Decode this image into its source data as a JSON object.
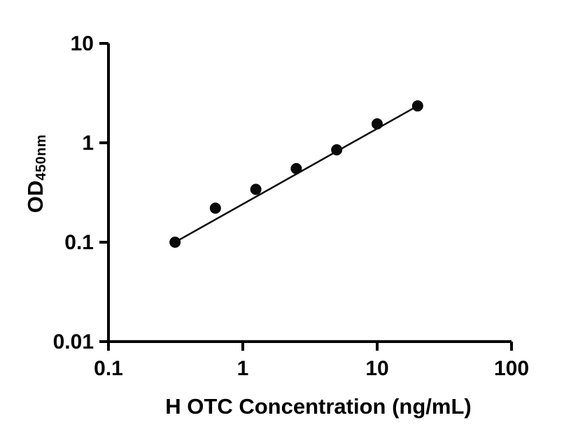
{
  "page": {
    "background": "#ffffff"
  },
  "chart_data": {
    "type": "scatter",
    "title": "",
    "xlabel": "H OTC Concentration (ng/mL)",
    "ylabel_main": "OD",
    "ylabel_sub": "450nm",
    "x_scale": "log",
    "y_scale": "log",
    "xlim": [
      0.1,
      100
    ],
    "ylim": [
      0.01,
      10
    ],
    "x_ticks": [
      0.1,
      1,
      10,
      100
    ],
    "x_tick_labels": [
      "0.1",
      "1",
      "10",
      "100"
    ],
    "y_ticks": [
      0.01,
      0.1,
      1,
      10
    ],
    "y_tick_labels": [
      "0.01",
      "0.1",
      "1",
      "10"
    ],
    "points": {
      "x": [
        0.313,
        0.625,
        1.25,
        2.5,
        5,
        10,
        20
      ],
      "y": [
        0.1,
        0.22,
        0.34,
        0.55,
        0.85,
        1.55,
        2.35
      ]
    },
    "trendline": {
      "x1": 0.313,
      "y1": 0.1,
      "x2": 20,
      "y2": 2.35
    },
    "marker_color": "#0a0a0a",
    "line_color": "#0a0a0a",
    "axis_color": "#000000",
    "grid": false,
    "legend": false
  }
}
